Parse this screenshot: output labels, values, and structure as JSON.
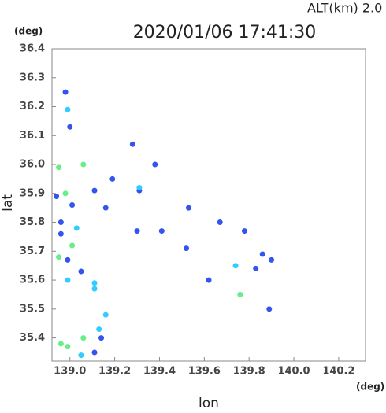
{
  "chart_data": {
    "type": "scatter",
    "title": "2020/01/06 17:41:30",
    "subtitle": "ALT(km) 2.0",
    "x_label": "lon",
    "y_label": "lat",
    "x_unit": "(deg)",
    "y_unit": "(deg)",
    "xlim": [
      138.92,
      140.32
    ],
    "ylim": [
      35.32,
      36.4
    ],
    "xticks": [
      {
        "value": 139,
        "label": "139.0"
      },
      139.2,
      139.4,
      139.6,
      139.8,
      {
        "value": 140,
        "label": "140.0"
      },
      140.2
    ],
    "yticks": [
      36.4,
      36.3,
      36.2,
      36.1,
      {
        "value": 36,
        "label": "36.0"
      },
      35.9,
      35.8,
      35.7,
      35.6,
      35.5,
      35.4
    ],
    "grid": false,
    "series": [
      {
        "color": "#3355ee",
        "x": [
          138.98,
          139.0,
          139.01,
          138.94,
          138.96,
          138.96,
          138.99,
          139.05,
          139.14,
          139.11,
          139.11,
          139.31,
          139.16,
          139.19,
          139.38,
          139.83,
          139.86,
          139.89,
          139.78,
          139.67,
          139.53,
          139.52,
          139.62,
          139.9,
          139.41,
          139.3,
          139.28
        ],
        "y": [
          36.25,
          36.13,
          35.86,
          35.89,
          35.8,
          35.76,
          35.67,
          35.63,
          35.4,
          35.35,
          35.91,
          35.91,
          35.85,
          35.95,
          36.0,
          35.64,
          35.69,
          35.5,
          35.77,
          35.8,
          35.85,
          35.71,
          35.6,
          35.67,
          35.77,
          35.77,
          36.07
        ]
      },
      {
        "color": "#33ccff",
        "x": [
          138.99,
          139.03,
          138.99,
          139.11,
          139.11,
          139.13,
          139.05,
          139.31,
          139.74,
          139.16
        ],
        "y": [
          36.19,
          35.78,
          35.6,
          35.59,
          35.57,
          35.43,
          35.34,
          35.92,
          35.65,
          35.48
        ]
      },
      {
        "color": "#66ee88",
        "x": [
          138.95,
          139.06,
          138.98,
          139.01,
          138.95,
          139.06,
          138.96,
          138.99,
          139.76
        ],
        "y": [
          35.99,
          36.0,
          35.9,
          35.72,
          35.68,
          35.4,
          35.38,
          35.37,
          35.55
        ]
      }
    ]
  }
}
